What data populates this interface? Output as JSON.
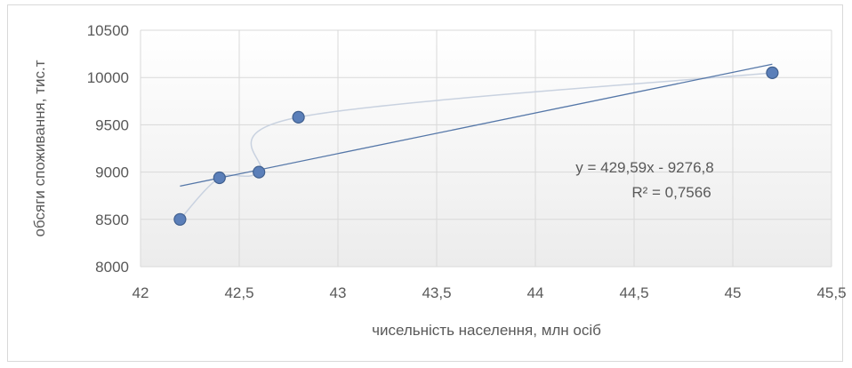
{
  "chart_data": {
    "type": "scatter",
    "title": "",
    "xlabel": "чисельність населення, млн  осіб",
    "ylabel": "обсяги споживання, тис.т",
    "xlim": [
      42,
      45.5
    ],
    "ylim": [
      8000,
      10500
    ],
    "x_ticks": [
      "42",
      "42,5",
      "43",
      "43,5",
      "44",
      "44,5",
      "45",
      "45,5"
    ],
    "x_tick_values": [
      42,
      42.5,
      43,
      43.5,
      44,
      44.5,
      45,
      45.5
    ],
    "y_ticks": [
      "8000",
      "8500",
      "9000",
      "9500",
      "10000",
      "10500"
    ],
    "y_tick_values": [
      8000,
      8500,
      9000,
      9500,
      10000,
      10500
    ],
    "grid": true,
    "legend": "none",
    "series": [
      {
        "points": [
          {
            "x": 42.2,
            "y": 8500
          },
          {
            "x": 42.4,
            "y": 8940
          },
          {
            "x": 42.6,
            "y": 9000
          },
          {
            "x": 42.8,
            "y": 9580
          },
          {
            "x": 45.2,
            "y": 10050
          }
        ],
        "marker_color": "#5b7fb9",
        "smooth_line_color": "#c9d2e0"
      }
    ],
    "trendline": {
      "type": "linear",
      "slope": 429.59,
      "intercept": -9276.8,
      "x_range": [
        42.2,
        45.2
      ],
      "equation_label": "y = 429,59x - 9276,8",
      "r2_label": "R² = 0,7566",
      "color": "#5577a8"
    }
  }
}
